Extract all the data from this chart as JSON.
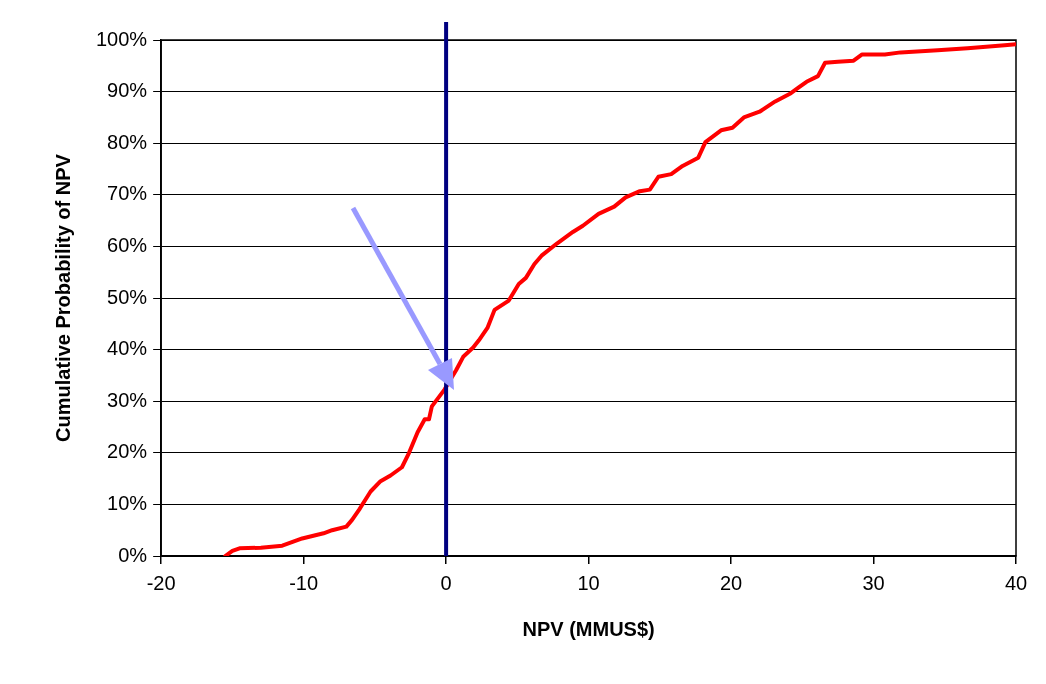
{
  "chart_data": {
    "type": "line",
    "xlabel": "NPV (MMUS$)",
    "ylabel": "Cumulative Probability of NPV",
    "series": [
      {
        "color": "#ff0000",
        "x": [
          -15.5,
          -15.0,
          -14.5,
          -13.0,
          -11.5,
          -10.1,
          -8.6,
          -8.0,
          -7.0,
          -6.6,
          -6.1,
          -5.3,
          -4.6,
          -3.9,
          -3.1,
          -2.6,
          -2.0,
          -1.5,
          -1.2,
          -1.0,
          -0.1,
          0.7,
          1.2,
          1.9,
          2.3,
          2.9,
          3.4,
          4.4,
          5.1,
          5.6,
          6.2,
          6.7,
          7.8,
          8.9,
          9.6,
          10.7,
          11.8,
          12.6,
          13.6,
          14.3,
          14.9,
          15.8,
          16.6,
          17.7,
          18.2,
          19.3,
          20.1,
          20.9,
          22.0,
          23.1,
          24.2,
          24.8,
          25.3,
          26.1,
          26.6,
          27.5,
          28.6,
          29.2,
          30.8,
          31.9,
          34.5,
          36.6,
          39.2,
          40
        ],
        "values": [
          0,
          1,
          1.5,
          1.6,
          2,
          3.4,
          4.4,
          5,
          5.7,
          7,
          9,
          12.5,
          14.5,
          15.6,
          17.2,
          20,
          24,
          26.5,
          26.5,
          29,
          32.3,
          36,
          38.6,
          40.4,
          41.8,
          44.2,
          47.7,
          49.5,
          52.7,
          53.9,
          56.6,
          58.2,
          60.6,
          62.8,
          64,
          66.3,
          67.7,
          69.5,
          70.7,
          71,
          73.5,
          74,
          75.6,
          77.2,
          80.2,
          82.5,
          83,
          85,
          86.1,
          88.1,
          89.7,
          90.9,
          91.9,
          93,
          95.6,
          95.8,
          96,
          97.2,
          97.2,
          97.6,
          98,
          98.4,
          99,
          99.2
        ]
      }
    ],
    "xlim": [
      -20,
      40
    ],
    "xticks": [
      -20,
      -10,
      0,
      10,
      20,
      30,
      40
    ],
    "ylim": [
      0,
      100
    ],
    "yticks": [
      {
        "value": 0,
        "label": "0%"
      },
      {
        "value": 10,
        "label": "10%"
      },
      {
        "value": 20,
        "label": "20%"
      },
      {
        "value": 30,
        "label": "30%"
      },
      {
        "value": 40,
        "label": "40%"
      },
      {
        "value": 50,
        "label": "50%"
      },
      {
        "value": 60,
        "label": "60%"
      },
      {
        "value": 70,
        "label": "70%"
      },
      {
        "value": 80,
        "label": "80%"
      },
      {
        "value": 90,
        "label": "90%"
      },
      {
        "value": 100,
        "label": "100%"
      }
    ],
    "grid": "y",
    "legend": false,
    "marker": "none",
    "line_style": "solid",
    "ref_lines": [
      {
        "axis": "x",
        "value": 0,
        "color": "#000080"
      }
    ]
  }
}
